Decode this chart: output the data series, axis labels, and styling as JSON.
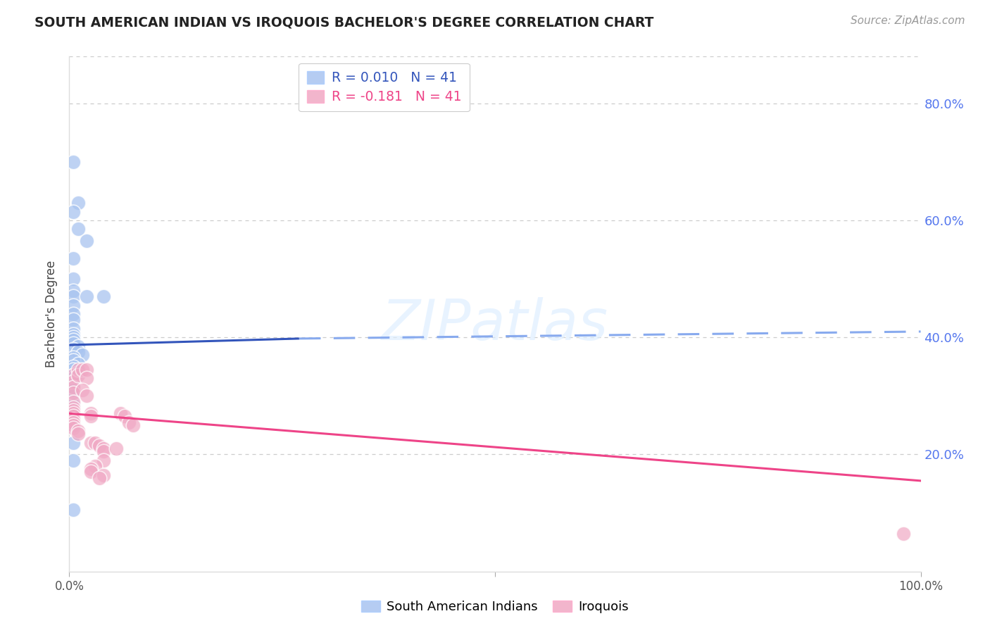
{
  "title": "SOUTH AMERICAN INDIAN VS IROQUOIS BACHELOR'S DEGREE CORRELATION CHART",
  "source": "Source: ZipAtlas.com",
  "ylabel": "Bachelor's Degree",
  "legend_label1": "South American Indians",
  "legend_label2": "Iroquois",
  "r1": 0.01,
  "r2": -0.181,
  "n1": 41,
  "n2": 41,
  "blue_color": "#A8C4F0",
  "pink_color": "#F0A8C4",
  "blue_line_color": "#3355BB",
  "pink_line_color": "#EE4488",
  "blue_dashed_color": "#88AAEE",
  "grid_color": "#CCCCCC",
  "ytick_color": "#5577EE",
  "yticks": [
    0.0,
    0.2,
    0.4,
    0.6,
    0.8
  ],
  "ytick_labels": [
    "",
    "20.0%",
    "40.0%",
    "60.0%",
    "80.0%"
  ],
  "blue_scatter_x": [
    0.005,
    0.01,
    0.005,
    0.01,
    0.02,
    0.005,
    0.005,
    0.005,
    0.005,
    0.005,
    0.005,
    0.005,
    0.005,
    0.005,
    0.005,
    0.005,
    0.005,
    0.01,
    0.005,
    0.01,
    0.015,
    0.005,
    0.02,
    0.005,
    0.01,
    0.005,
    0.005,
    0.01,
    0.005,
    0.005,
    0.005,
    0.005,
    0.005,
    0.005,
    0.005,
    0.04,
    0.005,
    0.005,
    0.005,
    0.005,
    0.005
  ],
  "blue_scatter_y": [
    0.7,
    0.63,
    0.615,
    0.585,
    0.565,
    0.535,
    0.5,
    0.48,
    0.47,
    0.455,
    0.44,
    0.43,
    0.415,
    0.405,
    0.4,
    0.395,
    0.39,
    0.385,
    0.38,
    0.375,
    0.37,
    0.365,
    0.47,
    0.36,
    0.355,
    0.35,
    0.345,
    0.34,
    0.335,
    0.33,
    0.325,
    0.32,
    0.31,
    0.3,
    0.285,
    0.47,
    0.27,
    0.25,
    0.22,
    0.19,
    0.105
  ],
  "pink_scatter_x": [
    0.005,
    0.005,
    0.005,
    0.005,
    0.005,
    0.005,
    0.005,
    0.005,
    0.005,
    0.005,
    0.005,
    0.005,
    0.01,
    0.01,
    0.005,
    0.01,
    0.01,
    0.015,
    0.02,
    0.02,
    0.015,
    0.02,
    0.025,
    0.025,
    0.025,
    0.03,
    0.035,
    0.04,
    0.04,
    0.04,
    0.03,
    0.025,
    0.025,
    0.04,
    0.035,
    0.055,
    0.06,
    0.065,
    0.07,
    0.075,
    0.98
  ],
  "pink_scatter_y": [
    0.335,
    0.325,
    0.315,
    0.305,
    0.29,
    0.28,
    0.275,
    0.27,
    0.265,
    0.26,
    0.255,
    0.25,
    0.345,
    0.335,
    0.245,
    0.24,
    0.235,
    0.345,
    0.345,
    0.33,
    0.31,
    0.3,
    0.27,
    0.265,
    0.22,
    0.22,
    0.215,
    0.21,
    0.205,
    0.19,
    0.18,
    0.175,
    0.17,
    0.165,
    0.16,
    0.21,
    0.27,
    0.265,
    0.255,
    0.25,
    0.065
  ],
  "blue_trendline_solid": {
    "x": [
      0.0,
      0.27
    ],
    "y": [
      0.387,
      0.398
    ]
  },
  "blue_trendline_dashed": {
    "x": [
      0.27,
      1.0
    ],
    "y": [
      0.398,
      0.41
    ]
  },
  "pink_trendline": {
    "x": [
      0.0,
      1.0
    ],
    "y": [
      0.27,
      0.155
    ]
  },
  "xlim": [
    0.0,
    1.0
  ],
  "ylim": [
    0.0,
    0.88
  ],
  "bg_color": "#FFFFFF",
  "watermark": "ZIPatlas"
}
